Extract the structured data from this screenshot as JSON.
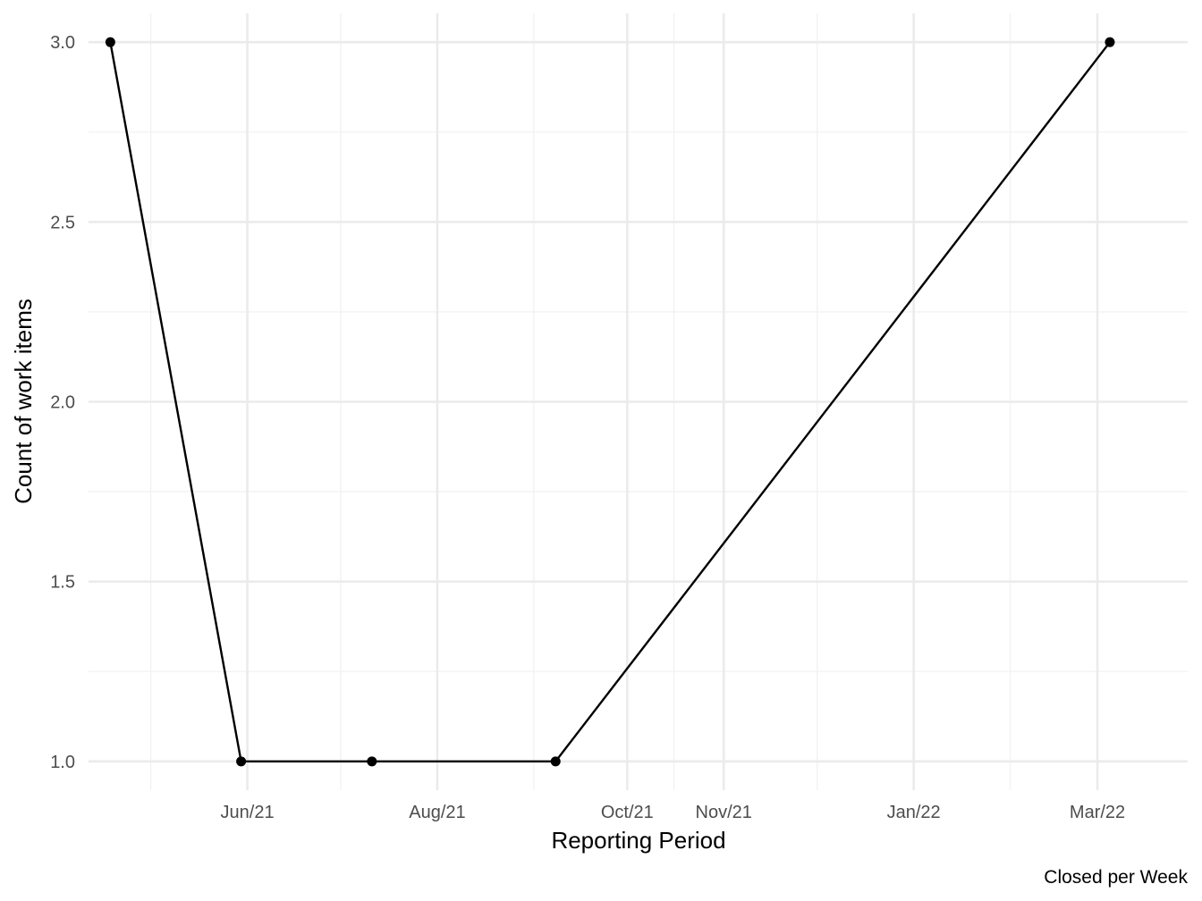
{
  "chart_data": {
    "type": "line",
    "title": "",
    "xlabel": "Reporting Period",
    "ylabel": "Count of work items",
    "caption": "Closed per Week",
    "x_is_date": true,
    "xlim": [
      "2021-04-11",
      "2022-03-30"
    ],
    "ylim": [
      0.92,
      3.08
    ],
    "x_ticks": [
      {
        "date": "2021-06-01",
        "label": "Jun/21"
      },
      {
        "date": "2021-08-01",
        "label": "Aug/21"
      },
      {
        "date": "2021-10-01",
        "label": "Oct/21"
      },
      {
        "date": "2021-11-01",
        "label": "Nov/21"
      },
      {
        "date": "2022-01-01",
        "label": "Jan/22"
      },
      {
        "date": "2022-03-01",
        "label": "Mar/22"
      }
    ],
    "x_minor_ticks": [
      "2021-05-01",
      "2021-07-01",
      "2021-09-01",
      "2021-10-16",
      "2021-12-01",
      "2022-02-01"
    ],
    "y_ticks": [
      1.0,
      1.5,
      2.0,
      2.5,
      3.0
    ],
    "y_tick_labels": [
      "1.0",
      "1.5",
      "2.0",
      "2.5",
      "3.0"
    ],
    "grid": true,
    "legend": "none",
    "series": [
      {
        "color": "#000000",
        "x": [
          "2021-04-18",
          "2021-05-30",
          "2021-07-11",
          "2021-09-08",
          "2022-03-05"
        ],
        "values": [
          3,
          1,
          1,
          1,
          3
        ]
      }
    ],
    "colors": {
      "grid_major": "#ebebeb",
      "grid_minor": "#f2f2f2",
      "tick_text": "#4d4d4d",
      "line": "#000000"
    }
  }
}
